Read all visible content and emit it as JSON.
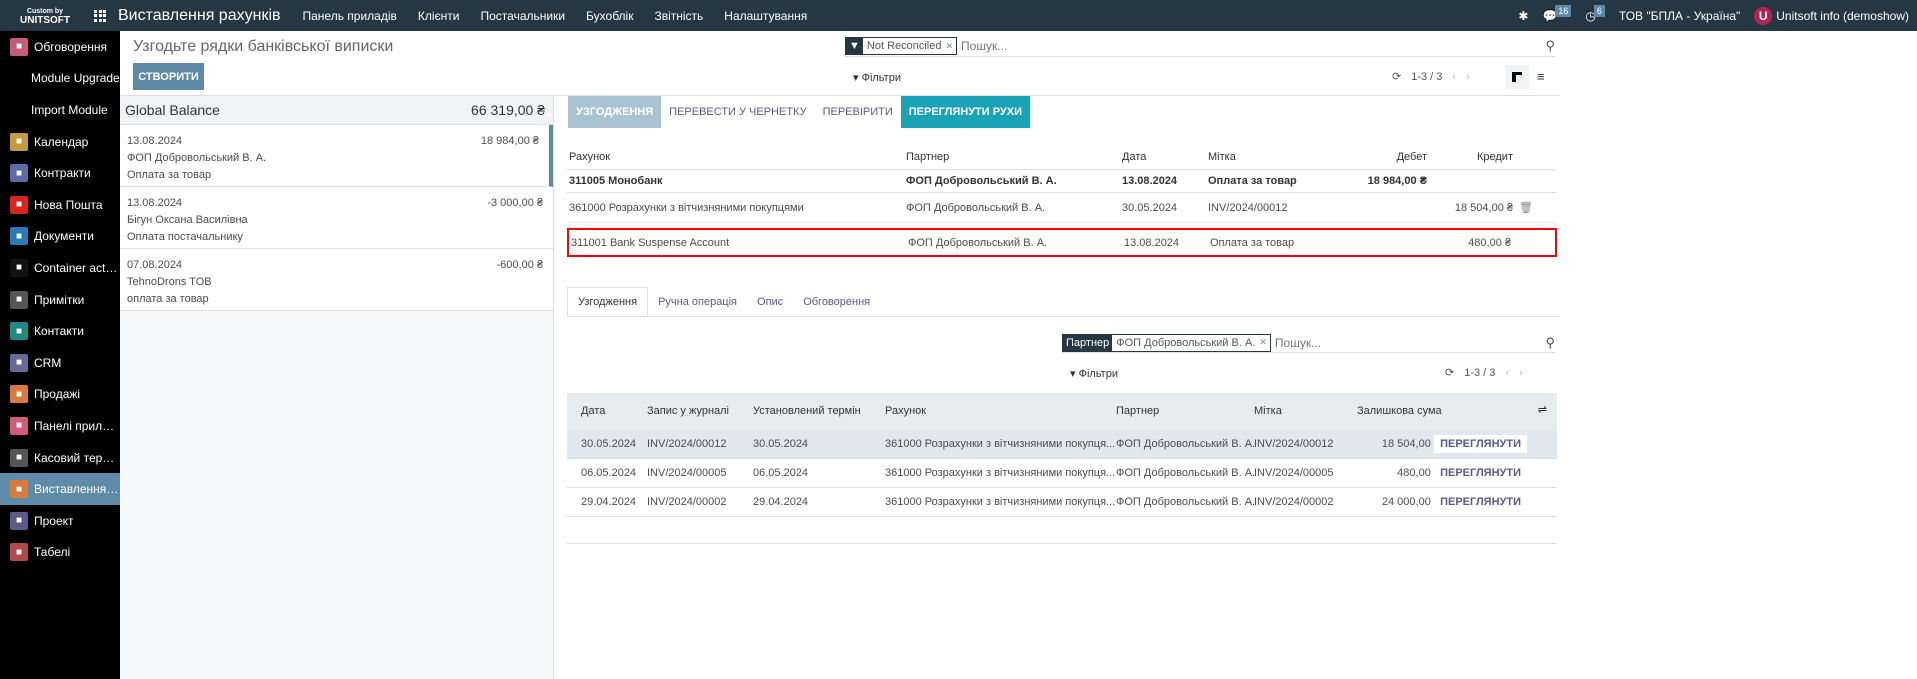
{
  "topbar": {
    "logo_top": "Custom by",
    "logo_bottom": "UNITSOFT",
    "app_title": "Виставлення рахунків",
    "menu": [
      "Панель приладів",
      "Клієнти",
      "Постачальники",
      "Бухоблік",
      "Звітність",
      "Налаштування"
    ],
    "messages_count": "16",
    "activities_count": "6",
    "company": "ТОВ \"БПЛА - Україна\"",
    "user_initial": "U",
    "user": "Unitsoft info (demoshow)"
  },
  "sidebar": {
    "items": [
      {
        "label": "Обговорення",
        "color": "#c75c7a"
      },
      {
        "label": "Module Upgrade"
      },
      {
        "label": "Import Module"
      },
      {
        "label": "Календар",
        "color": "#c49a3c"
      },
      {
        "label": "Контракти",
        "color": "#5c6aa8"
      },
      {
        "label": "Нова Пошта",
        "color": "#d9261c"
      },
      {
        "label": "Документи",
        "color": "#2a7ab8"
      },
      {
        "label": "Container actions",
        "color": "#111"
      },
      {
        "label": "Примітки",
        "color": "#555"
      },
      {
        "label": "Контакти",
        "color": "#1f8a85"
      },
      {
        "label": "CRM",
        "color": "#6a6a9a"
      },
      {
        "label": "Продажі",
        "color": "#d97a3c"
      },
      {
        "label": "Панелі приладів",
        "color": "#d45a7a"
      },
      {
        "label": "Касовий термін...",
        "color": "#555"
      },
      {
        "label": "Виставлення ра...",
        "color": "#d97a3c",
        "active": true
      },
      {
        "label": "Проект",
        "color": "#5c5a8a"
      },
      {
        "label": "Табелі",
        "color": "#b04a4a"
      }
    ]
  },
  "page": {
    "title": "Узгодьте рядки банківської виписки",
    "create": "СТВОРИТИ",
    "search": {
      "facet_label": "Not Reconciled",
      "placeholder": "Пошук..."
    },
    "filters": "Фільтри",
    "pager": "1-3 / 3"
  },
  "statements": {
    "global_label": "Global Balance",
    "global_amount": "66 319,00 ₴",
    "items": [
      {
        "date": "13.08.2024",
        "partner": "ФОП Добровольський В. А.",
        "ref": "Оплата за товар",
        "amount": "18 984,00 ₴"
      },
      {
        "date": "13.08.2024",
        "partner": "Бігун Оксана Василівна",
        "ref": "Оплата постачальнику",
        "amount": "-3 000,00 ₴"
      },
      {
        "date": "07.08.2024",
        "partner": "TehnoDrons TOB",
        "ref": "оплата за товар",
        "amount": "-600,00 ₴"
      }
    ]
  },
  "actions": {
    "reconcile": "УЗГОДЖЕННЯ",
    "to_draft": "ПЕРЕВЕСТИ У ЧЕРНЕТКУ",
    "check": "ПЕРЕВІРИТИ",
    "view_moves": "ПЕРЕГЛЯНУТИ РУХИ"
  },
  "lines": {
    "headers": [
      "Рахунок",
      "Партнер",
      "Дата",
      "Мітка",
      "Дебет",
      "Кредит"
    ],
    "rows": [
      {
        "account": "311005 Монобанк",
        "partner": "ФОП Добровольський В. А.",
        "date": "13.08.2024",
        "label": "Оплата за товар",
        "debit": "18 984,00 ₴",
        "credit": ""
      },
      {
        "account": "361000 Розрахунки з вітчизняними покупцями",
        "partner": "ФОП Добровольський В. А.",
        "date": "30.05.2024",
        "label": "INV/2024/00012",
        "debit": "",
        "credit": "18 504,00 ₴"
      },
      {
        "account": "311001 Bank Suspense Account",
        "partner": "ФОП Добровольський В. А.",
        "date": "13.08.2024",
        "label": "Оплата за товар",
        "debit": "",
        "credit": "480,00 ₴"
      }
    ]
  },
  "tabs": [
    "Узгодження",
    "Ручна операція",
    "Опис",
    "Обговорення"
  ],
  "match": {
    "search": {
      "facet_label": "Партнер",
      "facet_value": "ФОП Добровольський В. А.",
      "placeholder": "Пошук..."
    },
    "filters": "Фільтри",
    "pager": "1-3 / 3",
    "headers": [
      "Дата",
      "Запис у журналі",
      "Установлений термін",
      "Рахунок",
      "Партнер",
      "Мітка",
      "Залишкова сума"
    ],
    "view_label": "ПЕРЕГЛЯНУТИ",
    "rows": [
      {
        "date": "30.05.2024",
        "move": "INV/2024/00012",
        "due": "30.05.2024",
        "account": "361000 Розрахунки з вітчизняними покупця...",
        "partner": "ФОП Добровольський В. А.",
        "label": "INV/2024/00012",
        "amount": "18 504,00 ₴"
      },
      {
        "date": "06.05.2024",
        "move": "INV/2024/00005",
        "due": "06.05.2024",
        "account": "361000 Розрахунки з вітчизняними покупця...",
        "partner": "ФОП Добровольський В. А.",
        "label": "INV/2024/00005",
        "amount": "480,00 ₴"
      },
      {
        "date": "29.04.2024",
        "move": "INV/2024/00002",
        "due": "29.04.2024",
        "account": "361000 Розрахунки з вітчизняними покупця...",
        "partner": "ФОП Добровольський В. А.",
        "label": "INV/2024/00002",
        "amount": "24 000,00 ₴"
      }
    ]
  }
}
